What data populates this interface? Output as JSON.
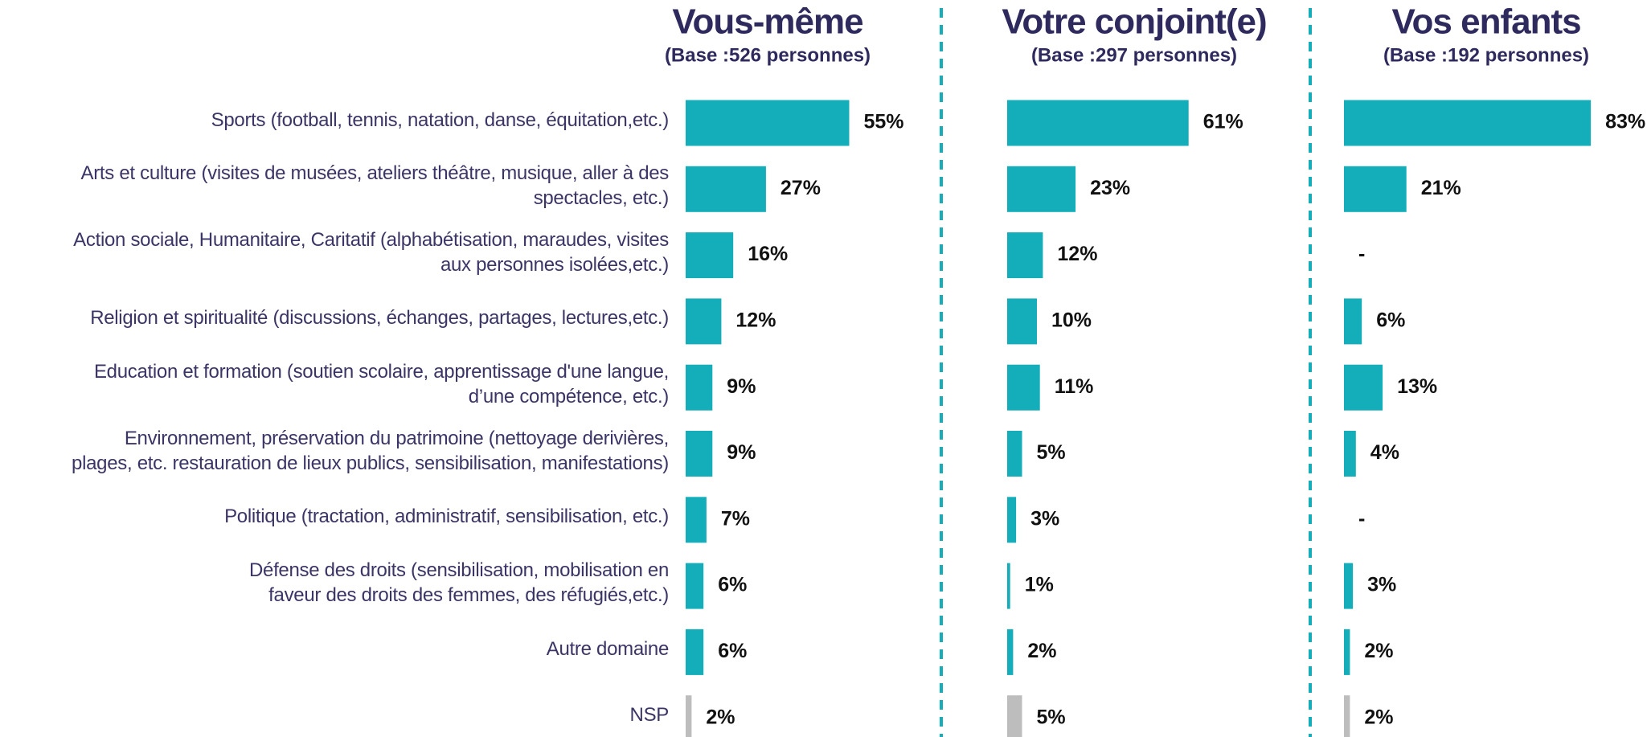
{
  "chart_data": {
    "type": "hbar",
    "categories": [
      "Sports (football, tennis, natation, danse, équitation,etc.)",
      "Arts et culture (visites de musées, ateliers théâtre, musique, aller à des\nspectacles, etc.)",
      "Action sociale, Humanitaire, Caritatif (alphabétisation, maraudes, visites\naux personnes isolées,etc.)",
      "Religion et spiritualité (discussions, échanges, partages, lectures,etc.)",
      "Education et formation (soutien scolaire, apprentissage d'une langue,\nd’une compétence, etc.)",
      "Environnement, préservation du patrimoine (nettoyage derivières,\nplages, etc. restauration de lieux publics, sensibilisation, manifestations)",
      "Politique (tractation, administratif, sensibilisation, etc.)",
      "Défense des droits (sensibilisation, mobilisation en\nfaveur des droits des femmes, des réfugiés,etc.)",
      "Autre domaine",
      "NSP"
    ],
    "color": "#13aeb9",
    "last_color": "#bdbdbd",
    "series": [
      {
        "name": "Vous-même",
        "base": "(Base :526 personnes)",
        "values": [
          55,
          27,
          16,
          12,
          9,
          9,
          7,
          6,
          6,
          2
        ],
        "value_labels": [
          "55%",
          "27%",
          "16%",
          "12%",
          "9%",
          "9%",
          "7%",
          "6%",
          "6%",
          "2%"
        ]
      },
      {
        "name": "Votre conjoint(e)",
        "base": "(Base :297 personnes)",
        "values": [
          61,
          23,
          12,
          10,
          11,
          5,
          3,
          1,
          2,
          5
        ],
        "value_labels": [
          "61%",
          "23%",
          "12%",
          "10%",
          "11%",
          "5%",
          "3%",
          "1%",
          "2%",
          "5%"
        ]
      },
      {
        "name": "Vos enfants",
        "base": "(Base :192 personnes)",
        "values": [
          83,
          21,
          null,
          6,
          13,
          4,
          null,
          3,
          2,
          2
        ],
        "value_labels": [
          "83%",
          "21%",
          "-",
          "6%",
          "13%",
          "4%",
          "-",
          "3%",
          "2%",
          "2%"
        ]
      }
    ]
  }
}
